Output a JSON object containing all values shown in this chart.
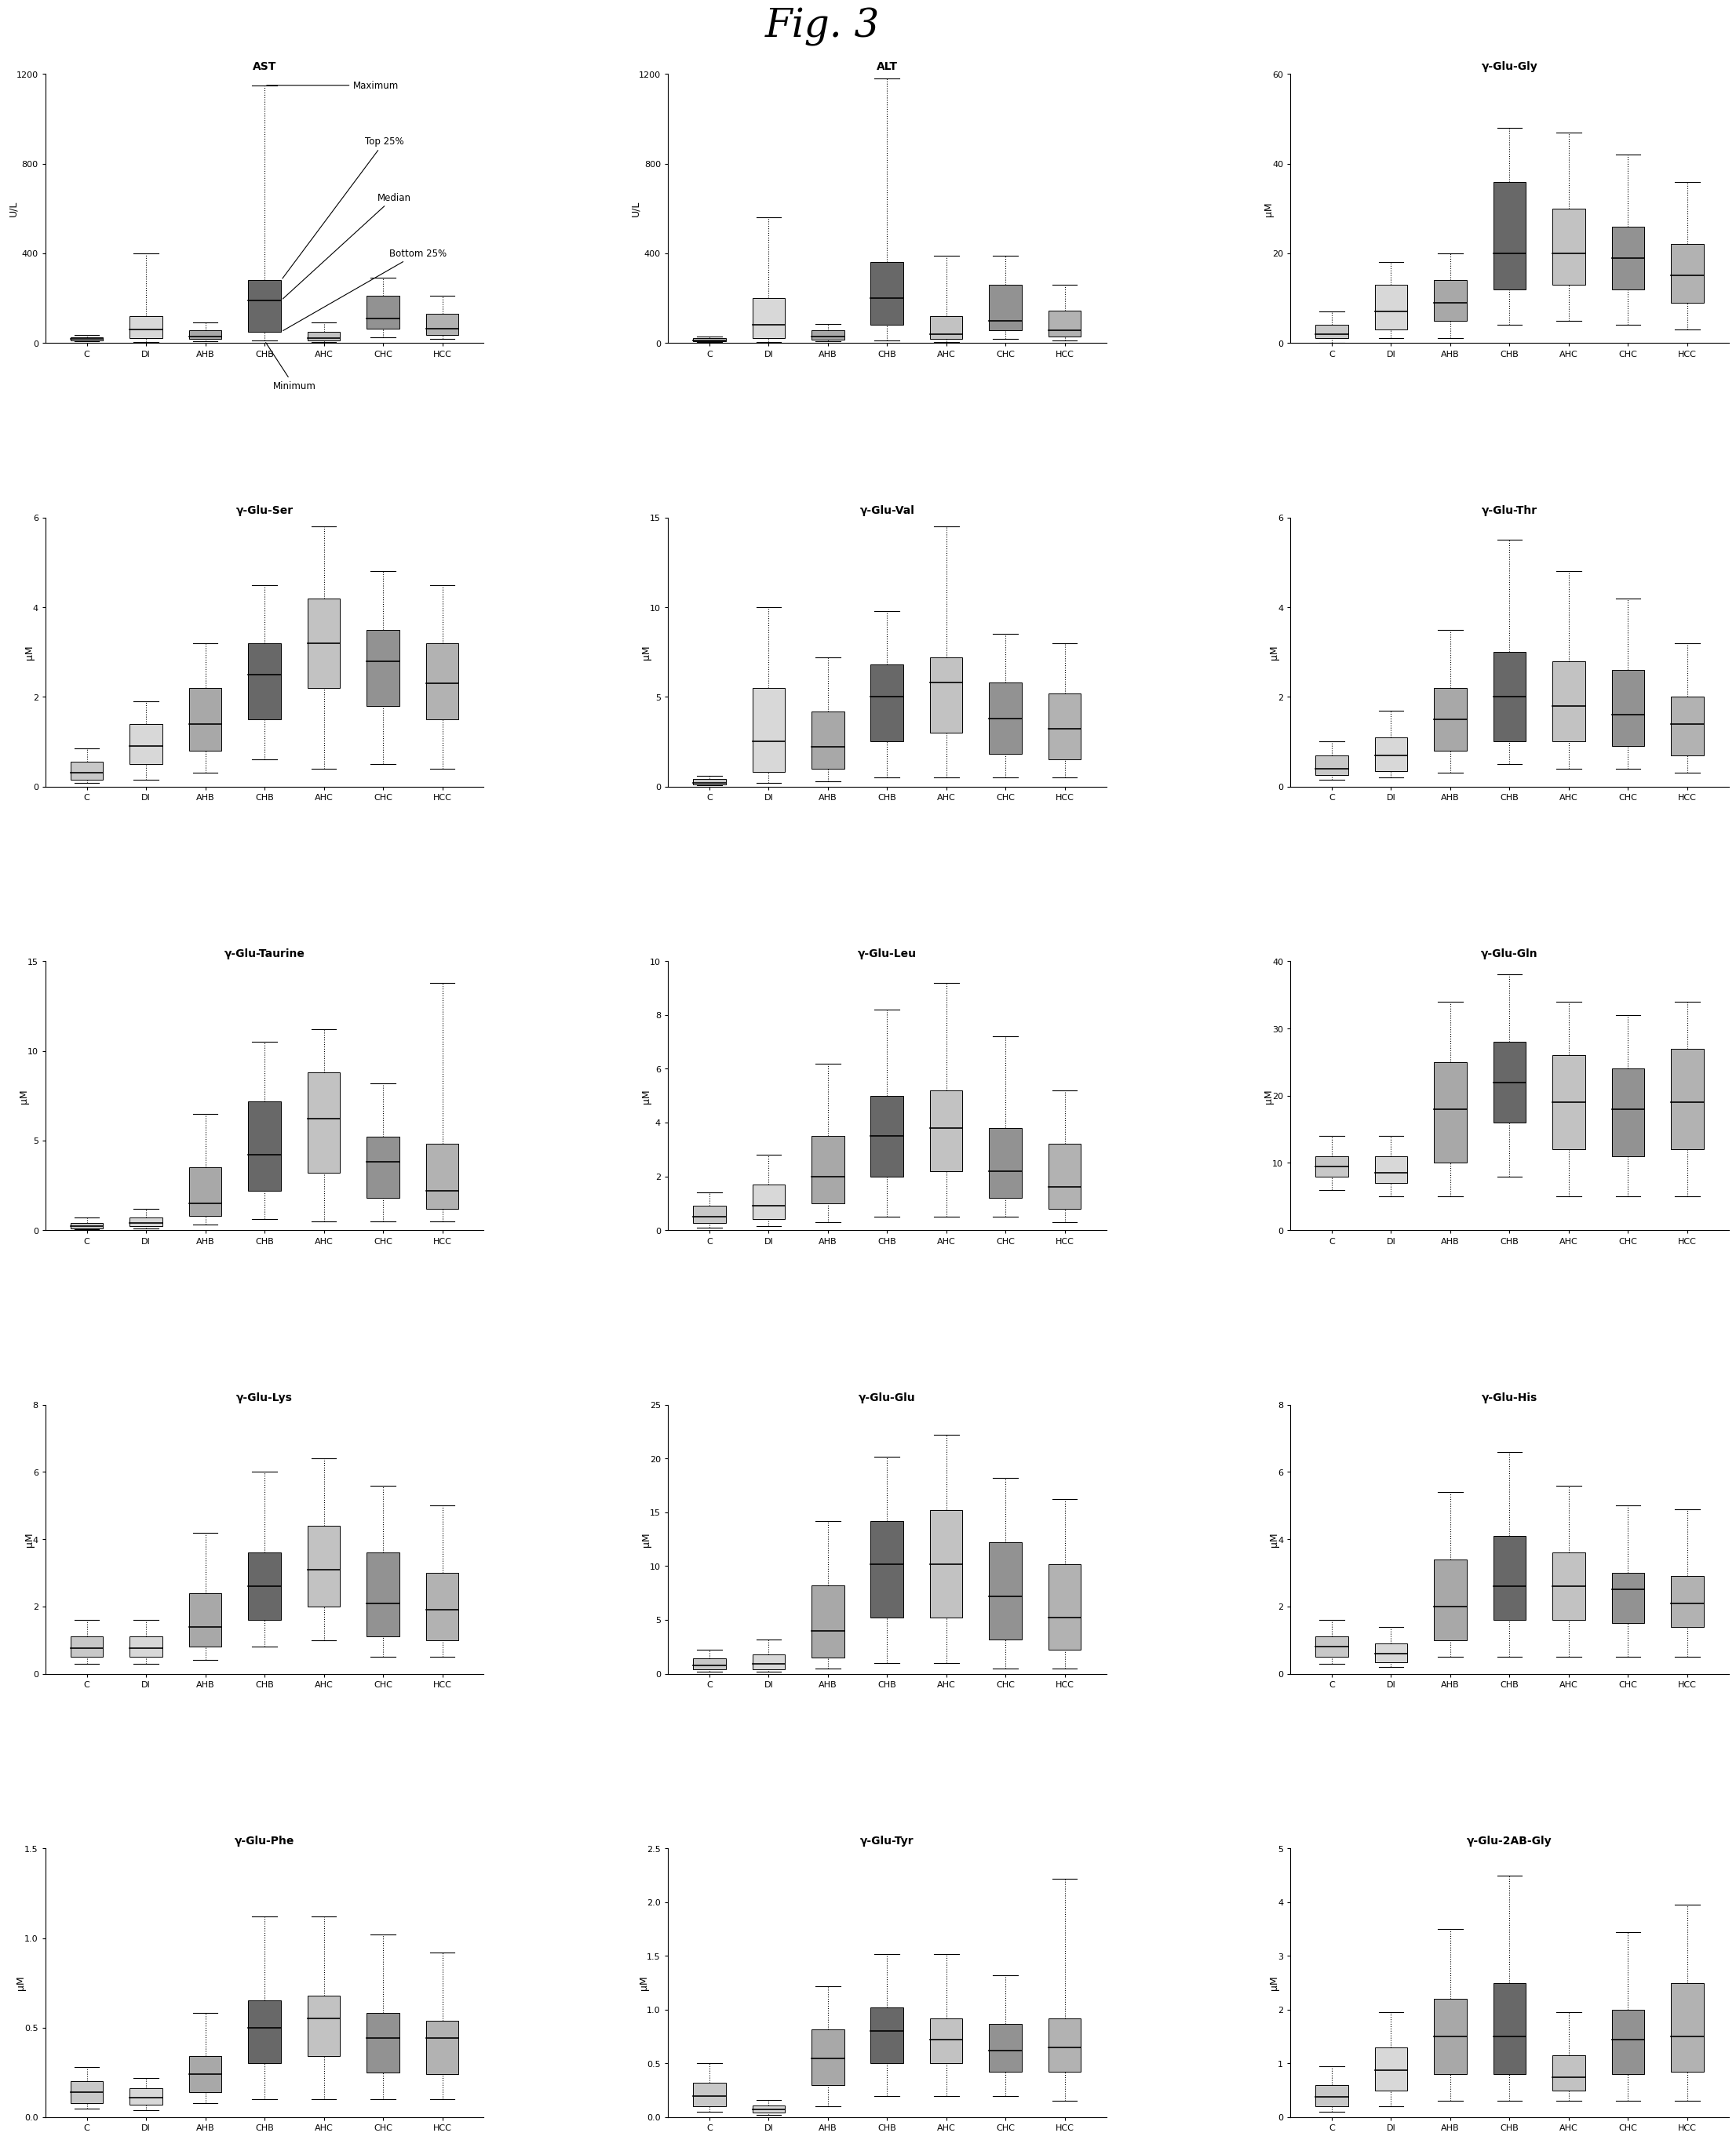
{
  "fig_title": "Fig. 3",
  "categories": [
    "C",
    "DI",
    "AHB",
    "CHB",
    "AHC",
    "CHC",
    "HCC"
  ],
  "panels": [
    {
      "title": "AST",
      "ylabel": "U/L",
      "ylim": [
        0,
        1200
      ],
      "yticks": [
        0,
        400,
        800,
        1200
      ],
      "annotation": true,
      "data": [
        {
          "min": 8,
          "q1": 12,
          "med": 18,
          "q3": 25,
          "max": 35
        },
        {
          "min": 5,
          "q1": 20,
          "med": 60,
          "q3": 120,
          "max": 400
        },
        {
          "min": 8,
          "q1": 18,
          "med": 30,
          "q3": 55,
          "max": 90
        },
        {
          "min": 10,
          "q1": 50,
          "med": 190,
          "q3": 280,
          "max": 1150
        },
        {
          "min": 5,
          "q1": 12,
          "med": 22,
          "q3": 48,
          "max": 90
        },
        {
          "min": 25,
          "q1": 65,
          "med": 110,
          "q3": 210,
          "max": 290
        },
        {
          "min": 18,
          "q1": 35,
          "med": 65,
          "q3": 130,
          "max": 210
        }
      ]
    },
    {
      "title": "ALT",
      "ylabel": "U/L",
      "ylim": [
        0,
        1200
      ],
      "yticks": [
        0,
        400,
        800,
        1200
      ],
      "annotation": false,
      "data": [
        {
          "min": 5,
          "q1": 8,
          "med": 12,
          "q3": 20,
          "max": 28
        },
        {
          "min": 5,
          "q1": 20,
          "med": 80,
          "q3": 200,
          "max": 560
        },
        {
          "min": 8,
          "q1": 15,
          "med": 28,
          "q3": 55,
          "max": 85
        },
        {
          "min": 10,
          "q1": 80,
          "med": 200,
          "q3": 360,
          "max": 1180
        },
        {
          "min": 5,
          "q1": 18,
          "med": 40,
          "q3": 120,
          "max": 390
        },
        {
          "min": 18,
          "q1": 55,
          "med": 100,
          "q3": 260,
          "max": 390
        },
        {
          "min": 10,
          "q1": 28,
          "med": 55,
          "q3": 145,
          "max": 260
        }
      ]
    },
    {
      "title": "γ-Glu-Gly",
      "ylabel": "μM",
      "ylim": [
        0,
        60
      ],
      "yticks": [
        0,
        20,
        40,
        60
      ],
      "annotation": false,
      "data": [
        {
          "min": 0,
          "q1": 1,
          "med": 2,
          "q3": 4,
          "max": 7
        },
        {
          "min": 1,
          "q1": 3,
          "med": 7,
          "q3": 13,
          "max": 18
        },
        {
          "min": 1,
          "q1": 5,
          "med": 9,
          "q3": 14,
          "max": 20
        },
        {
          "min": 4,
          "q1": 12,
          "med": 20,
          "q3": 36,
          "max": 48
        },
        {
          "min": 5,
          "q1": 13,
          "med": 20,
          "q3": 30,
          "max": 47
        },
        {
          "min": 4,
          "q1": 12,
          "med": 19,
          "q3": 26,
          "max": 42
        },
        {
          "min": 3,
          "q1": 9,
          "med": 15,
          "q3": 22,
          "max": 36
        }
      ]
    },
    {
      "title": "γ-Glu-Ser",
      "ylabel": "μM",
      "ylim": [
        0,
        6
      ],
      "yticks": [
        0,
        2,
        4,
        6
      ],
      "annotation": false,
      "data": [
        {
          "min": 0.08,
          "q1": 0.15,
          "med": 0.3,
          "q3": 0.55,
          "max": 0.85
        },
        {
          "min": 0.15,
          "q1": 0.5,
          "med": 0.9,
          "q3": 1.4,
          "max": 1.9
        },
        {
          "min": 0.3,
          "q1": 0.8,
          "med": 1.4,
          "q3": 2.2,
          "max": 3.2
        },
        {
          "min": 0.6,
          "q1": 1.5,
          "med": 2.5,
          "q3": 3.2,
          "max": 4.5
        },
        {
          "min": 0.4,
          "q1": 2.2,
          "med": 3.2,
          "q3": 4.2,
          "max": 5.8
        },
        {
          "min": 0.5,
          "q1": 1.8,
          "med": 2.8,
          "q3": 3.5,
          "max": 4.8
        },
        {
          "min": 0.4,
          "q1": 1.5,
          "med": 2.3,
          "q3": 3.2,
          "max": 4.5
        }
      ]
    },
    {
      "title": "γ-Glu-Val",
      "ylabel": "μM",
      "ylim": [
        0,
        15
      ],
      "yticks": [
        0,
        5,
        10,
        15
      ],
      "annotation": false,
      "data": [
        {
          "min": 0.05,
          "q1": 0.1,
          "med": 0.2,
          "q3": 0.4,
          "max": 0.6
        },
        {
          "min": 0.2,
          "q1": 0.8,
          "med": 2.5,
          "q3": 5.5,
          "max": 10.0
        },
        {
          "min": 0.3,
          "q1": 1.0,
          "med": 2.2,
          "q3": 4.2,
          "max": 7.2
        },
        {
          "min": 0.5,
          "q1": 2.5,
          "med": 5.0,
          "q3": 6.8,
          "max": 9.8
        },
        {
          "min": 0.5,
          "q1": 3.0,
          "med": 5.8,
          "q3": 7.2,
          "max": 14.5
        },
        {
          "min": 0.5,
          "q1": 1.8,
          "med": 3.8,
          "q3": 5.8,
          "max": 8.5
        },
        {
          "min": 0.5,
          "q1": 1.5,
          "med": 3.2,
          "q3": 5.2,
          "max": 8.0
        }
      ]
    },
    {
      "title": "γ-Glu-Thr",
      "ylabel": "μM",
      "ylim": [
        0,
        6
      ],
      "yticks": [
        0,
        2,
        4,
        6
      ],
      "annotation": false,
      "data": [
        {
          "min": 0.15,
          "q1": 0.25,
          "med": 0.4,
          "q3": 0.7,
          "max": 1.0
        },
        {
          "min": 0.2,
          "q1": 0.35,
          "med": 0.7,
          "q3": 1.1,
          "max": 1.7
        },
        {
          "min": 0.3,
          "q1": 0.8,
          "med": 1.5,
          "q3": 2.2,
          "max": 3.5
        },
        {
          "min": 0.5,
          "q1": 1.0,
          "med": 2.0,
          "q3": 3.0,
          "max": 5.5
        },
        {
          "min": 0.4,
          "q1": 1.0,
          "med": 1.8,
          "q3": 2.8,
          "max": 4.8
        },
        {
          "min": 0.4,
          "q1": 0.9,
          "med": 1.6,
          "q3": 2.6,
          "max": 4.2
        },
        {
          "min": 0.3,
          "q1": 0.7,
          "med": 1.4,
          "q3": 2.0,
          "max": 3.2
        }
      ]
    },
    {
      "title": "γ-Glu-Taurine",
      "ylabel": "μM",
      "ylim": [
        0,
        15
      ],
      "yticks": [
        0,
        5,
        10,
        15
      ],
      "annotation": false,
      "data": [
        {
          "min": 0.05,
          "q1": 0.1,
          "med": 0.2,
          "q3": 0.4,
          "max": 0.7
        },
        {
          "min": 0.1,
          "q1": 0.2,
          "med": 0.4,
          "q3": 0.7,
          "max": 1.2
        },
        {
          "min": 0.3,
          "q1": 0.8,
          "med": 1.5,
          "q3": 3.5,
          "max": 6.5
        },
        {
          "min": 0.6,
          "q1": 2.2,
          "med": 4.2,
          "q3": 7.2,
          "max": 10.5
        },
        {
          "min": 0.5,
          "q1": 3.2,
          "med": 6.2,
          "q3": 8.8,
          "max": 11.2
        },
        {
          "min": 0.5,
          "q1": 1.8,
          "med": 3.8,
          "q3": 5.2,
          "max": 8.2
        },
        {
          "min": 0.5,
          "q1": 1.2,
          "med": 2.2,
          "q3": 4.8,
          "max": 13.8
        }
      ]
    },
    {
      "title": "γ-Glu-Leu",
      "ylabel": "μM",
      "ylim": [
        0,
        10
      ],
      "yticks": [
        0,
        2,
        4,
        6,
        8,
        10
      ],
      "annotation": false,
      "data": [
        {
          "min": 0.1,
          "q1": 0.25,
          "med": 0.5,
          "q3": 0.9,
          "max": 1.4
        },
        {
          "min": 0.15,
          "q1": 0.4,
          "med": 0.9,
          "q3": 1.7,
          "max": 2.8
        },
        {
          "min": 0.3,
          "q1": 1.0,
          "med": 2.0,
          "q3": 3.5,
          "max": 6.2
        },
        {
          "min": 0.5,
          "q1": 2.0,
          "med": 3.5,
          "q3": 5.0,
          "max": 8.2
        },
        {
          "min": 0.5,
          "q1": 2.2,
          "med": 3.8,
          "q3": 5.2,
          "max": 9.2
        },
        {
          "min": 0.5,
          "q1": 1.2,
          "med": 2.2,
          "q3": 3.8,
          "max": 7.2
        },
        {
          "min": 0.3,
          "q1": 0.8,
          "med": 1.6,
          "q3": 3.2,
          "max": 5.2
        }
      ]
    },
    {
      "title": "γ-Glu-Gln",
      "ylabel": "μM",
      "ylim": [
        0,
        40
      ],
      "yticks": [
        0,
        10,
        20,
        30,
        40
      ],
      "annotation": false,
      "data": [
        {
          "min": 6,
          "q1": 8,
          "med": 9.5,
          "q3": 11,
          "max": 14
        },
        {
          "min": 5,
          "q1": 7,
          "med": 8.5,
          "q3": 11,
          "max": 14
        },
        {
          "min": 5,
          "q1": 10,
          "med": 18,
          "q3": 25,
          "max": 34
        },
        {
          "min": 8,
          "q1": 16,
          "med": 22,
          "q3": 28,
          "max": 38
        },
        {
          "min": 5,
          "q1": 12,
          "med": 19,
          "q3": 26,
          "max": 34
        },
        {
          "min": 5,
          "q1": 11,
          "med": 18,
          "q3": 24,
          "max": 32
        },
        {
          "min": 5,
          "q1": 12,
          "med": 19,
          "q3": 27,
          "max": 34
        }
      ]
    },
    {
      "title": "γ-Glu-Lys",
      "ylabel": "μM",
      "ylim": [
        0,
        8
      ],
      "yticks": [
        0,
        2,
        4,
        6,
        8
      ],
      "annotation": false,
      "data": [
        {
          "min": 0.3,
          "q1": 0.5,
          "med": 0.75,
          "q3": 1.1,
          "max": 1.6
        },
        {
          "min": 0.3,
          "q1": 0.5,
          "med": 0.75,
          "q3": 1.1,
          "max": 1.6
        },
        {
          "min": 0.4,
          "q1": 0.8,
          "med": 1.4,
          "q3": 2.4,
          "max": 4.2
        },
        {
          "min": 0.8,
          "q1": 1.6,
          "med": 2.6,
          "q3": 3.6,
          "max": 6.0
        },
        {
          "min": 1.0,
          "q1": 2.0,
          "med": 3.1,
          "q3": 4.4,
          "max": 6.4
        },
        {
          "min": 0.5,
          "q1": 1.1,
          "med": 2.1,
          "q3": 3.6,
          "max": 5.6
        },
        {
          "min": 0.5,
          "q1": 1.0,
          "med": 1.9,
          "q3": 3.0,
          "max": 5.0
        }
      ]
    },
    {
      "title": "γ-Glu-Glu",
      "ylabel": "μM",
      "ylim": [
        0,
        25
      ],
      "yticks": [
        0,
        5,
        10,
        15,
        20,
        25
      ],
      "annotation": false,
      "data": [
        {
          "min": 0.15,
          "q1": 0.4,
          "med": 0.8,
          "q3": 1.4,
          "max": 2.2
        },
        {
          "min": 0.15,
          "q1": 0.4,
          "med": 0.9,
          "q3": 1.8,
          "max": 3.2
        },
        {
          "min": 0.5,
          "q1": 1.5,
          "med": 4.0,
          "q3": 8.2,
          "max": 14.2
        },
        {
          "min": 1.0,
          "q1": 5.2,
          "med": 10.2,
          "q3": 14.2,
          "max": 20.2
        },
        {
          "min": 1.0,
          "q1": 5.2,
          "med": 10.2,
          "q3": 15.2,
          "max": 22.2
        },
        {
          "min": 0.5,
          "q1": 3.2,
          "med": 7.2,
          "q3": 12.2,
          "max": 18.2
        },
        {
          "min": 0.5,
          "q1": 2.2,
          "med": 5.2,
          "q3": 10.2,
          "max": 16.2
        }
      ]
    },
    {
      "title": "γ-Glu-His",
      "ylabel": "μM",
      "ylim": [
        0,
        8
      ],
      "yticks": [
        0,
        2,
        4,
        6,
        8
      ],
      "annotation": false,
      "data": [
        {
          "min": 0.3,
          "q1": 0.5,
          "med": 0.8,
          "q3": 1.1,
          "max": 1.6
        },
        {
          "min": 0.2,
          "q1": 0.35,
          "med": 0.6,
          "q3": 0.9,
          "max": 1.4
        },
        {
          "min": 0.5,
          "q1": 1.0,
          "med": 2.0,
          "q3": 3.4,
          "max": 5.4
        },
        {
          "min": 0.5,
          "q1": 1.6,
          "med": 2.6,
          "q3": 4.1,
          "max": 6.6
        },
        {
          "min": 0.5,
          "q1": 1.6,
          "med": 2.6,
          "q3": 3.6,
          "max": 5.6
        },
        {
          "min": 0.5,
          "q1": 1.5,
          "med": 2.5,
          "q3": 3.0,
          "max": 5.0
        },
        {
          "min": 0.5,
          "q1": 1.4,
          "med": 2.1,
          "q3": 2.9,
          "max": 4.9
        }
      ]
    },
    {
      "title": "γ-Glu-Phe",
      "ylabel": "μM",
      "ylim": [
        0,
        1.5
      ],
      "yticks": [
        0.0,
        0.5,
        1.0,
        1.5
      ],
      "annotation": false,
      "data": [
        {
          "min": 0.05,
          "q1": 0.08,
          "med": 0.14,
          "q3": 0.2,
          "max": 0.28
        },
        {
          "min": 0.04,
          "q1": 0.07,
          "med": 0.11,
          "q3": 0.16,
          "max": 0.22
        },
        {
          "min": 0.08,
          "q1": 0.14,
          "med": 0.24,
          "q3": 0.34,
          "max": 0.58
        },
        {
          "min": 0.1,
          "q1": 0.3,
          "med": 0.5,
          "q3": 0.65,
          "max": 1.12
        },
        {
          "min": 0.1,
          "q1": 0.34,
          "med": 0.55,
          "q3": 0.68,
          "max": 1.12
        },
        {
          "min": 0.1,
          "q1": 0.25,
          "med": 0.44,
          "q3": 0.58,
          "max": 1.02
        },
        {
          "min": 0.1,
          "q1": 0.24,
          "med": 0.44,
          "q3": 0.54,
          "max": 0.92
        }
      ]
    },
    {
      "title": "γ-Glu-Tyr",
      "ylabel": "μM",
      "ylim": [
        0.0,
        2.5
      ],
      "yticks": [
        0.0,
        0.5,
        1.0,
        1.5,
        2.0,
        2.5
      ],
      "annotation": false,
      "data": [
        {
          "min": 0.05,
          "q1": 0.1,
          "med": 0.2,
          "q3": 0.32,
          "max": 0.5
        },
        {
          "min": 0.02,
          "q1": 0.04,
          "med": 0.07,
          "q3": 0.11,
          "max": 0.16
        },
        {
          "min": 0.1,
          "q1": 0.3,
          "med": 0.55,
          "q3": 0.82,
          "max": 1.22
        },
        {
          "min": 0.2,
          "q1": 0.5,
          "med": 0.8,
          "q3": 1.02,
          "max": 1.52
        },
        {
          "min": 0.2,
          "q1": 0.5,
          "med": 0.72,
          "q3": 0.92,
          "max": 1.52
        },
        {
          "min": 0.2,
          "q1": 0.42,
          "med": 0.62,
          "q3": 0.87,
          "max": 1.32
        },
        {
          "min": 0.15,
          "q1": 0.42,
          "med": 0.65,
          "q3": 0.92,
          "max": 2.22
        }
      ]
    },
    {
      "title": "γ-Glu-2AB-Gly",
      "ylabel": "μM",
      "ylim": [
        0,
        5
      ],
      "yticks": [
        0,
        1,
        2,
        3,
        4,
        5
      ],
      "annotation": false,
      "data": [
        {
          "min": 0.1,
          "q1": 0.2,
          "med": 0.38,
          "q3": 0.6,
          "max": 0.95
        },
        {
          "min": 0.2,
          "q1": 0.5,
          "med": 0.88,
          "q3": 1.3,
          "max": 1.95
        },
        {
          "min": 0.3,
          "q1": 0.8,
          "med": 1.5,
          "q3": 2.2,
          "max": 3.5
        },
        {
          "min": 0.3,
          "q1": 0.8,
          "med": 1.5,
          "q3": 2.5,
          "max": 4.5
        },
        {
          "min": 0.3,
          "q1": 0.5,
          "med": 0.75,
          "q3": 1.15,
          "max": 1.95
        },
        {
          "min": 0.3,
          "q1": 0.8,
          "med": 1.45,
          "q3": 2.0,
          "max": 3.45
        },
        {
          "min": 0.3,
          "q1": 0.85,
          "med": 1.5,
          "q3": 2.5,
          "max": 3.95
        }
      ]
    }
  ],
  "group_colors": [
    "#c8c8c8",
    "#d8d8d8",
    "#a8a8a8",
    "#686868",
    "#c2c2c2",
    "#929292",
    "#b2b2b2"
  ],
  "annotation_labels": [
    "Maximum",
    "Top 25%",
    "Median",
    "Bottom 25%",
    "Minimum"
  ]
}
